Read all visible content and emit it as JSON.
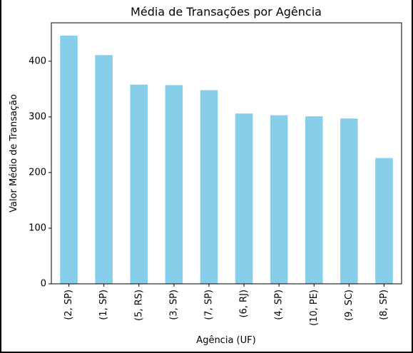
{
  "chart_data": {
    "type": "bar",
    "title": "Média de Transações por Agência",
    "xlabel": "Agência (UF)",
    "ylabel": "Valor Médio de Transação",
    "categories": [
      "(2, SP)",
      "(1, SP)",
      "(5, RS)",
      "(3, SP)",
      "(7, SP)",
      "(6, RJ)",
      "(4, SP)",
      "(10, PE)",
      "(9, SC)",
      "(8, SP)"
    ],
    "values": [
      446,
      411,
      358,
      357,
      348,
      306,
      303,
      301,
      297,
      226
    ],
    "yticks": [
      0,
      100,
      200,
      300,
      400
    ],
    "ylim": [
      0,
      469
    ],
    "bar_color": "#87ceeb",
    "grid": false,
    "legend": "none"
  }
}
